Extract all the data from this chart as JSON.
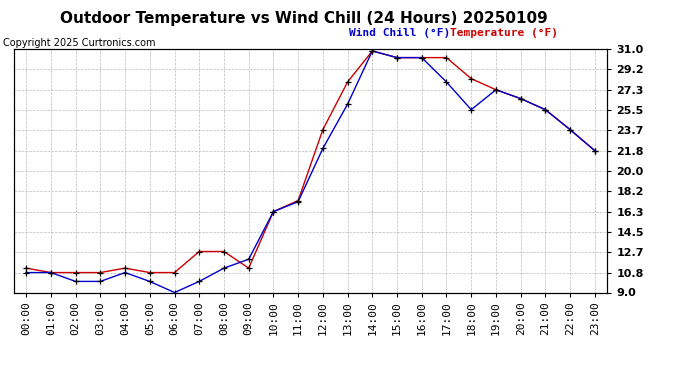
{
  "title": "Outdoor Temperature vs Wind Chill (24 Hours) 20250109",
  "copyright": "Copyright 2025 Curtronics.com",
  "legend_wind_chill": "Wind Chill (°F)",
  "legend_temperature": "Temperature (°F)",
  "hours": [
    "00:00",
    "01:00",
    "02:00",
    "03:00",
    "04:00",
    "05:00",
    "06:00",
    "07:00",
    "08:00",
    "09:00",
    "10:00",
    "11:00",
    "12:00",
    "13:00",
    "14:00",
    "15:00",
    "16:00",
    "17:00",
    "18:00",
    "19:00",
    "20:00",
    "21:00",
    "22:00",
    "23:00"
  ],
  "temperature": [
    11.2,
    10.8,
    10.8,
    10.8,
    11.2,
    10.8,
    10.8,
    12.7,
    12.7,
    11.2,
    16.3,
    17.3,
    23.7,
    28.0,
    30.8,
    30.2,
    30.2,
    30.2,
    28.3,
    27.3,
    26.5,
    25.5,
    23.7,
    21.8
  ],
  "wind_chill": [
    10.8,
    10.8,
    10.0,
    10.0,
    10.8,
    10.0,
    9.0,
    10.0,
    11.2,
    12.0,
    16.3,
    17.2,
    22.0,
    26.0,
    30.8,
    30.2,
    30.2,
    28.0,
    25.5,
    27.3,
    26.5,
    25.5,
    23.7,
    21.8
  ],
  "ylim": [
    9.0,
    31.0
  ],
  "yticks": [
    9.0,
    10.8,
    12.7,
    14.5,
    16.3,
    18.2,
    20.0,
    21.8,
    23.7,
    25.5,
    27.3,
    29.2,
    31.0
  ],
  "ytick_labels": [
    "9.0",
    "10.8",
    "12.7",
    "14.5",
    "16.3",
    "18.2",
    "20.0",
    "21.8",
    "23.7",
    "25.5",
    "27.3",
    "29.2",
    "31.0"
  ],
  "temp_color": "#cc0000",
  "wind_color": "#0000cc",
  "marker_color": "#000000",
  "bg_color": "#ffffff",
  "grid_color": "#bbbbbb",
  "title_fontsize": 11,
  "copyright_fontsize": 7,
  "legend_fontsize": 8,
  "tick_fontsize": 8
}
